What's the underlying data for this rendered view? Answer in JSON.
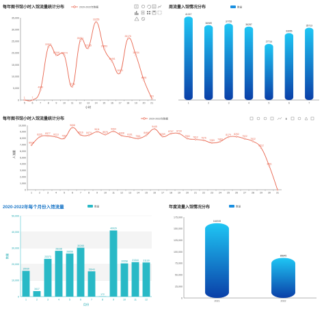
{
  "toolbar_icons": [
    "zoom-icon",
    "zoom-reset-icon",
    "restore-icon",
    "data-view-icon",
    "line-icon",
    "bar-icon",
    "stack-icon",
    "tile-icon",
    "save-icon",
    "rect-select-icon",
    "polygon-select-icon",
    "clear-select-icon"
  ],
  "colors": {
    "red": "#e8634c",
    "blue_top": "#1fc6f4",
    "blue_bottom": "#0a3fa8",
    "teal": "#29b9c6",
    "title_blue": "#1e78c8"
  },
  "chart_data": [
    {
      "id": "hourly_line",
      "type": "line",
      "title": "每年图书馆小时入馆流量统计分布",
      "legend": "2020-2022年数据",
      "xlabel": "小时",
      "ylabel": "",
      "x": [
        "5",
        "6",
        "7",
        "8",
        "9",
        "10",
        "11",
        "12",
        "13",
        "14",
        "15",
        "16",
        "17",
        "18",
        "19",
        "20",
        "21"
      ],
      "values": [
        1,
        7,
        4309,
        22571,
        19146,
        18974,
        5706,
        25281,
        22135,
        33255,
        21853,
        16461,
        11571,
        26176,
        19034,
        8426,
        591
      ],
      "yticks": [
        "0",
        "5,000",
        "10,000",
        "15,000",
        "20,000",
        "25,000",
        "30,000",
        "35,000"
      ],
      "ylim": [
        0,
        35000
      ],
      "grid": false
    },
    {
      "id": "weekly_bar",
      "type": "bar",
      "title": "周流量入馆情况分布",
      "legend": "数量",
      "categories": [
        "1",
        "2",
        "3",
        "4",
        "5",
        "6",
        "7"
      ],
      "values": [
        41247,
        36989,
        37755,
        36287,
        27714,
        33055,
        35713
      ],
      "ylim": [
        0,
        42000
      ],
      "grid": false
    },
    {
      "id": "daily_line",
      "type": "line",
      "title": "每年图书馆小时入馆流量统计分布",
      "legend": "2020-2022年数据",
      "xlabel": "",
      "ylabel": "人流量",
      "x": [
        "1",
        "2",
        "3",
        "4",
        "5",
        "6",
        "7",
        "8",
        "9",
        "10",
        "11",
        "12",
        "13",
        "14",
        "15",
        "16",
        "17",
        "18",
        "19",
        "20",
        "21",
        "22",
        "23",
        "24",
        "25",
        "26",
        "27",
        "28",
        "29",
        "30",
        "31"
      ],
      "values": [
        6920,
        8205,
        8377,
        8213,
        7987,
        9658,
        8516,
        8474,
        9011,
        8576,
        9064,
        8408,
        8191,
        7961,
        8460,
        9445,
        8269,
        8707,
        8733,
        7960,
        7812,
        7676,
        7283,
        7483,
        8179,
        8252,
        7922,
        7522,
        6512,
        3661,
        0
      ],
      "labels": [
        "6920",
        "8205",
        "8377",
        "8213",
        "7987",
        "9658",
        "8516",
        "8474",
        "9011",
        "8576",
        "9064",
        "8408",
        "8191",
        "7961",
        "8460",
        "9445",
        "8269",
        "8707",
        "8733",
        "7960",
        "7812",
        "7676",
        "7283",
        "7483",
        "8179",
        "8252",
        "7922",
        "7522",
        "6512",
        "3661",
        ""
      ],
      "yticks": [
        "0",
        "1,000",
        "2,000",
        "3,000",
        "4,000",
        "5,000",
        "6,000",
        "7,000",
        "8,000",
        "9,000",
        "10,000"
      ],
      "ylim": [
        0,
        10000
      ],
      "grid": false
    },
    {
      "id": "monthly_bar",
      "type": "bar",
      "title": "2020-2022年每个月份入馆流量",
      "legend": "数量",
      "xlabel": "月份",
      "ylabel": "数量",
      "categories": [
        "1",
        "2",
        "3",
        "4",
        "5",
        "6",
        "7",
        "8",
        "9",
        "10",
        "11",
        "12"
      ],
      "values": [
        15939,
        3417,
        23373,
        28338,
        26656,
        30265,
        15643,
        172,
        40929,
        20558,
        21344,
        21130
      ],
      "yticks": [
        "0",
        "10,000",
        "20,000",
        "30,000",
        "40,000",
        "50,000"
      ],
      "ylim": [
        0,
        50000
      ],
      "grid": true
    },
    {
      "id": "yearly_bar",
      "type": "bar",
      "title": "年度流量入馆情况分布",
      "legend": "数量",
      "categories": [
        "2021",
        "2022"
      ],
      "values": [
        161919,
        86845
      ],
      "yticks": [
        "0",
        "25,000",
        "50,000",
        "75,000",
        "100,000",
        "125,000",
        "150,000",
        "175,000"
      ],
      "ylim": [
        0,
        175000
      ],
      "grid": false
    }
  ]
}
